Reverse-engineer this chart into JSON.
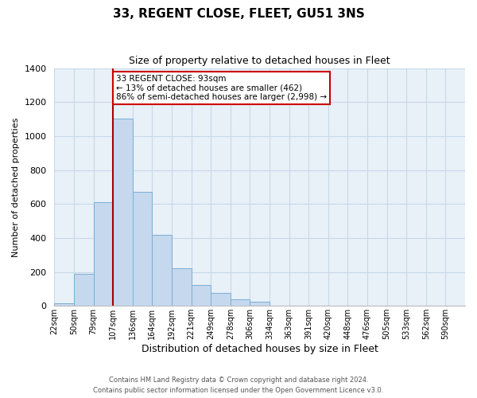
{
  "title": "33, REGENT CLOSE, FLEET, GU51 3NS",
  "subtitle": "Size of property relative to detached houses in Fleet",
  "xlabel": "Distribution of detached houses by size in Fleet",
  "ylabel": "Number of detached properties",
  "bar_labels": [
    "22sqm",
    "50sqm",
    "79sqm",
    "107sqm",
    "136sqm",
    "164sqm",
    "192sqm",
    "221sqm",
    "249sqm",
    "278sqm",
    "306sqm",
    "334sqm",
    "363sqm",
    "391sqm",
    "420sqm",
    "448sqm",
    "476sqm",
    "505sqm",
    "533sqm",
    "562sqm",
    "590sqm"
  ],
  "bar_values": [
    15,
    190,
    610,
    1105,
    670,
    420,
    220,
    125,
    75,
    40,
    27,
    0,
    0,
    0,
    0,
    0,
    0,
    0,
    0,
    0,
    0
  ],
  "bar_color": "#c5d8ee",
  "bar_edge_color": "#7aafd4",
  "ylim": [
    0,
    1400
  ],
  "yticks": [
    0,
    200,
    400,
    600,
    800,
    1000,
    1200,
    1400
  ],
  "property_line_x": 3.0,
  "annotation_title": "33 REGENT CLOSE: 93sqm",
  "annotation_line1": "← 13% of detached houses are smaller (462)",
  "annotation_line2": "86% of semi-detached houses are larger (2,998) →",
  "annotation_box_color": "#ffffff",
  "annotation_box_edge": "#cc0000",
  "property_line_color": "#aa0000",
  "footer_line1": "Contains HM Land Registry data © Crown copyright and database right 2024.",
  "footer_line2": "Contains public sector information licensed under the Open Government Licence v3.0.",
  "grid_color": "#c8d8e8",
  "background_color": "#e8f0f8"
}
